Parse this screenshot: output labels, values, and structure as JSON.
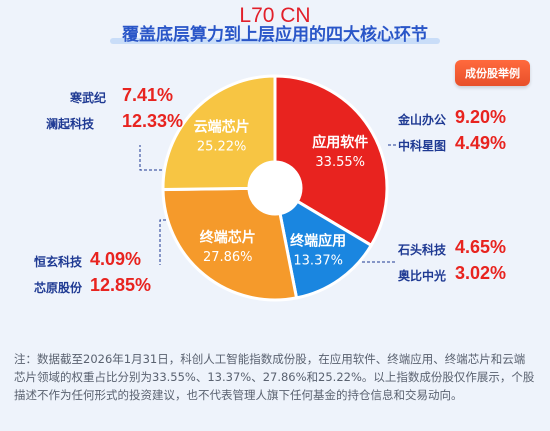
{
  "watermark": "L70 CN",
  "header": {
    "title": "覆盖底层算力到上层应用的四大核心环节",
    "tag": "成份股举例"
  },
  "chart_data": {
    "type": "pie",
    "donut": true,
    "slices": [
      {
        "label": "应用软件",
        "value": 33.55,
        "display": "33.55%",
        "color": "#e8231f"
      },
      {
        "label": "终端应用",
        "value": 13.37,
        "display": "13.37%",
        "color": "#1a86e0"
      },
      {
        "label": "终端芯片",
        "value": 27.86,
        "display": "27.86%",
        "color": "#f59a2b"
      },
      {
        "label": "云端芯片",
        "value": 25.22,
        "display": "25.22%",
        "color": "#f7c543"
      }
    ]
  },
  "callouts": {
    "app_software": [
      {
        "name": "金山办公",
        "value": "9.20%"
      },
      {
        "name": "中科星图",
        "value": "4.49%"
      }
    ],
    "terminal_app": [
      {
        "name": "石头科技",
        "value": "4.65%"
      },
      {
        "name": "奥比中光",
        "value": "3.02%"
      }
    ],
    "terminal_chip": [
      {
        "name": "恒玄科技",
        "value": "4.09%"
      },
      {
        "name": "芯原股份",
        "value": "12.85%"
      }
    ],
    "cloud_chip": [
      {
        "name": "寒武纪",
        "value": "7.41%"
      },
      {
        "name": "澜起科技",
        "value": "12.33%"
      }
    ]
  },
  "note": "注：数据截至2026年1月31日，科创人工智能指数成份股，在应用软件、终端应用、终端芯片和云端芯片领域的权重占比分别为33.55%、13.37%、27.86%和25.22%。以上指数成份股仅作展示，个股描述不作为任何形式的投资建议，也不代表管理人旗下任何基金的持仓信息和交易动向。"
}
